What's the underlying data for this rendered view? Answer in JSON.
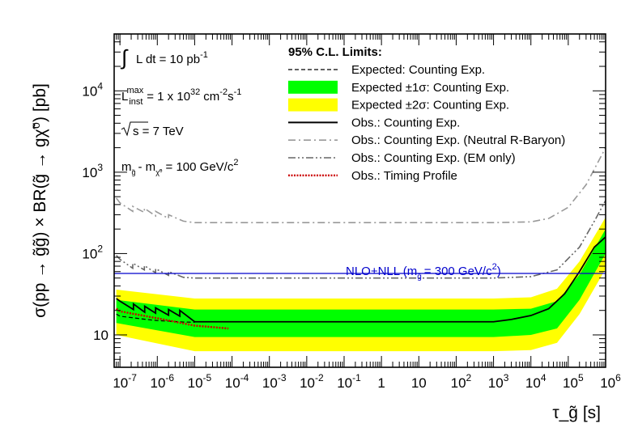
{
  "chart_data": {
    "type": "line",
    "title": "",
    "xlabel": "τ_g̃ [s]",
    "ylabel": "σ(pp → g̃g̃) × BR(g̃ → gχ̃⁰) [pb]",
    "x_scale": "log",
    "y_scale": "log",
    "xlim": [
      7e-08,
      1000000
    ],
    "ylim": [
      4,
      50000
    ],
    "x_ticks": [
      {
        "value": 1e-07,
        "base": "10",
        "exp": "-7"
      },
      {
        "value": 1e-06,
        "base": "10",
        "exp": "-6"
      },
      {
        "value": 1e-05,
        "base": "10",
        "exp": "-5"
      },
      {
        "value": 0.0001,
        "base": "10",
        "exp": "-4"
      },
      {
        "value": 0.001,
        "base": "10",
        "exp": "-3"
      },
      {
        "value": 0.01,
        "base": "10",
        "exp": "-2"
      },
      {
        "value": 0.1,
        "base": "10",
        "exp": "-1"
      },
      {
        "value": 1,
        "base": "1",
        "exp": ""
      },
      {
        "value": 10,
        "base": "10",
        "exp": ""
      },
      {
        "value": 100,
        "base": "10",
        "exp": "2"
      },
      {
        "value": 1000,
        "base": "10",
        "exp": "3"
      },
      {
        "value": 10000,
        "base": "10",
        "exp": "4"
      },
      {
        "value": 100000,
        "base": "10",
        "exp": "5"
      },
      {
        "value": 1000000,
        "base": "10",
        "exp": "6"
      }
    ],
    "y_ticks": [
      {
        "value": 10,
        "base": "10",
        "exp": ""
      },
      {
        "value": 100,
        "base": "10",
        "exp": "2"
      },
      {
        "value": 1000,
        "base": "10",
        "exp": "3"
      },
      {
        "value": 10000,
        "base": "10",
        "exp": "4"
      }
    ],
    "band_2sigma": {
      "x": [
        8e-08,
        1e-05,
        1000,
        10000,
        50000,
        200000,
        1000000
      ],
      "low": [
        10,
        6.3,
        6.3,
        6.5,
        8,
        18,
        65
      ],
      "high": [
        36,
        28,
        28,
        29,
        37,
        80,
        280
      ]
    },
    "band_1sigma": {
      "x": [
        8e-08,
        1e-05,
        1000,
        10000,
        50000,
        200000,
        1000000
      ],
      "low": [
        14,
        9.4,
        9.4,
        10,
        12,
        27,
        100
      ],
      "high": [
        27,
        20.5,
        20.5,
        21,
        26,
        55,
        200
      ]
    },
    "series": [
      {
        "name": "Expected: Counting Exp.",
        "style": "dashed",
        "color": "#000000",
        "x": [
          8e-08,
          1e-07,
          5e-07,
          1e-06,
          5e-06,
          1e-05
        ],
        "y": [
          18,
          17,
          15.5,
          15,
          14.4,
          14.3
        ]
      },
      {
        "name": "Obs.: Counting Exp.",
        "style": "solid",
        "color": "#000000",
        "x": [
          8e-08,
          1e-07,
          2.3e-07,
          2.3e-07,
          4.6e-07,
          4.6e-07,
          9e-07,
          9e-07,
          2e-06,
          2e-06,
          4e-06,
          4e-06,
          1e-05,
          0.001,
          1,
          100,
          1000,
          3000,
          10000,
          30000,
          80000,
          200000,
          500000,
          1000000
        ],
        "y": [
          28,
          26,
          20.5,
          24,
          19,
          22.5,
          18.5,
          21.5,
          17.5,
          20.5,
          17,
          20,
          14.5,
          14.5,
          14.5,
          14.5,
          14.5,
          15.5,
          17.3,
          21,
          32,
          60,
          120,
          160
        ]
      },
      {
        "name": "Obs.: Counting Exp. (Neutral R-Baryon)",
        "style": "dashdot",
        "color": "#999999",
        "x": [
          8e-08,
          1e-07,
          2.2e-07,
          2.2e-07,
          4.5e-07,
          4.5e-07,
          9e-07,
          9e-07,
          2e-06,
          2e-06,
          5e-06,
          1e-05,
          0.001,
          1,
          1000,
          10000,
          30000,
          100000,
          300000,
          1000000
        ],
        "y": [
          480,
          420,
          330,
          380,
          320,
          360,
          290,
          330,
          270,
          300,
          250,
          240,
          240,
          240,
          240,
          245,
          270,
          370,
          700,
          2000
        ]
      },
      {
        "name": "Obs.: Counting Exp. (EM only)",
        "style": "dashdot2",
        "color": "#666666",
        "x": [
          8e-08,
          1e-07,
          2.2e-07,
          2.2e-07,
          4.5e-07,
          4.5e-07,
          9e-07,
          9e-07,
          2e-06,
          2e-06,
          5e-06,
          1e-05,
          0.001,
          1,
          1000,
          10000,
          50000,
          200000,
          500000,
          1000000
        ],
        "y": [
          95,
          85,
          66,
          76,
          63,
          71,
          58,
          65,
          54,
          60,
          51,
          50,
          50,
          50,
          50,
          52,
          63,
          120,
          250,
          450
        ]
      },
      {
        "name": "Obs.: Timing Profile",
        "style": "dotted",
        "color": "#cc0000",
        "x": [
          8e-08,
          1e-07,
          1e-06,
          1e-05,
          8e-05
        ],
        "y": [
          21,
          19.5,
          16,
          13,
          12
        ]
      },
      {
        "name": "NLO+NLL (m_g̃ = 300 GeV/c²)",
        "style": "solid",
        "color": "#0000cc",
        "x": [
          7e-08,
          1000000
        ],
        "y": [
          57,
          57
        ]
      }
    ]
  },
  "legend": {
    "header": "95% C.L. Limits:",
    "items": [
      {
        "label": "Expected: Counting Exp.",
        "kind": "dashed"
      },
      {
        "label": "Expected ±1σ: Counting Exp.",
        "kind": "band1"
      },
      {
        "label": "Expected ±2σ: Counting Exp.",
        "kind": "band2"
      },
      {
        "label": "Obs.: Counting Exp.",
        "kind": "solid"
      },
      {
        "label": "Obs.: Counting Exp. (Neutral R-Baryon)",
        "kind": "dashdot"
      },
      {
        "label": "Obs.: Counting Exp. (EM only)",
        "kind": "dashdot2"
      },
      {
        "label": "Obs.: Timing Profile",
        "kind": "dotted"
      }
    ]
  },
  "annotations": {
    "lumi": {
      "prefix": "L dt = 10 pb",
      "exp": "-1"
    },
    "linst": {
      "sub": "inst",
      "sup": "max",
      "text": "= 1 x 10",
      "exp1": "32",
      "unit": "cm",
      "exp2": "-2",
      "unit2": "s",
      "exp3": "-1"
    },
    "sqrts": {
      "text": "s = 7 TeV"
    },
    "mass_diff": {
      "text": "m",
      "sub1": "g̃",
      "dash": "- m",
      "sub2": "χ̃⁰",
      "value": "= 100 GeV/c",
      "exp": "2"
    },
    "nlo_label": {
      "text": "NLO+NLL (m",
      "sub": "g̃",
      "value": "= 300 GeV/c",
      "exp": "2",
      "close": ")"
    }
  },
  "colors": {
    "band1": "#00ff00",
    "band2": "#ffff00",
    "nlo": "#0000cc",
    "timing": "#cc0000",
    "neutral": "#999999",
    "em": "#666666"
  }
}
